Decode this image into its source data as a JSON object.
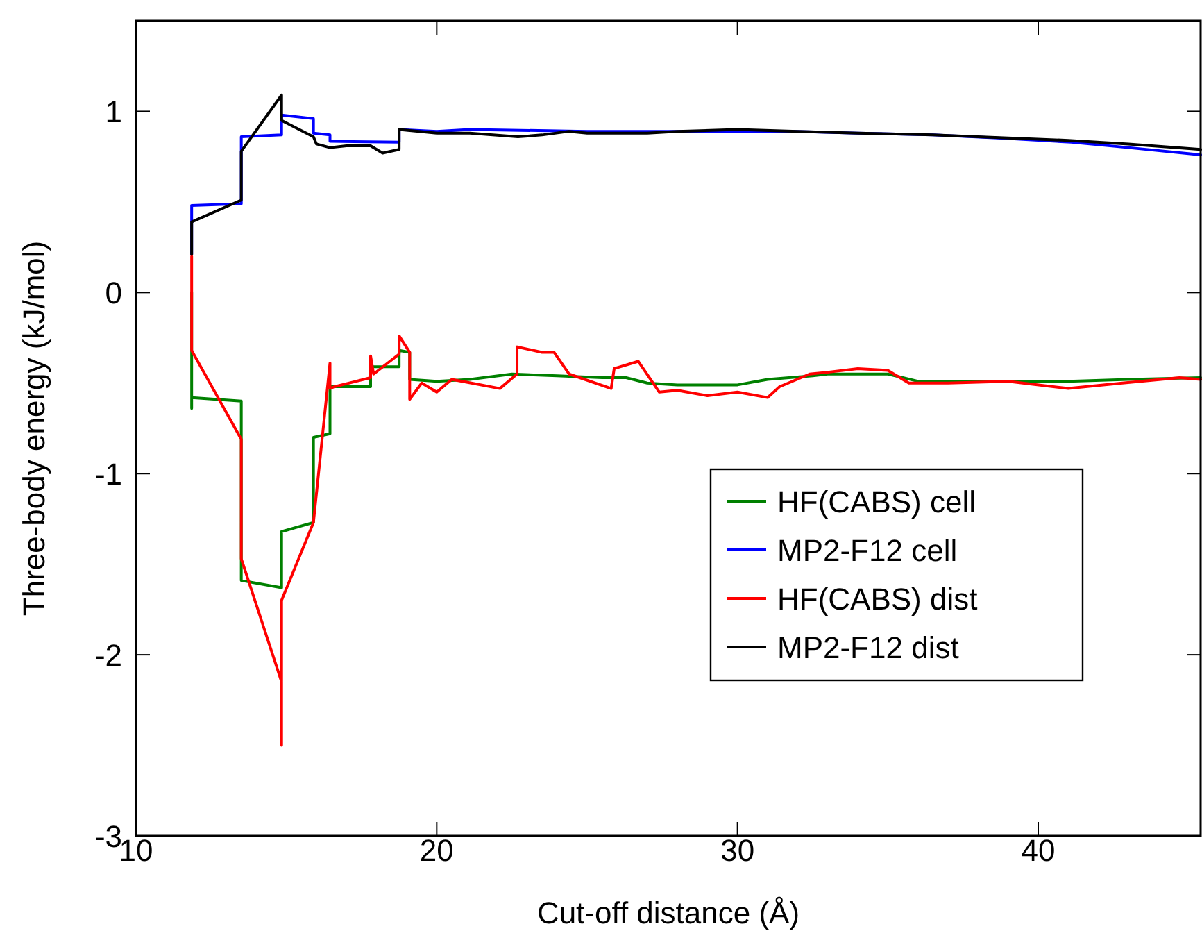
{
  "chart_data": {
    "type": "line",
    "xlabel": "Cut-off distance (Å)",
    "ylabel": "Three-body energy (kJ/mol)",
    "xlim": [
      10,
      45.4
    ],
    "ylim": [
      -3,
      1.5
    ],
    "xticks": [
      10,
      20,
      30,
      40
    ],
    "yticks": [
      -3,
      -2,
      -1,
      0,
      1
    ],
    "grid": false,
    "legend": "right",
    "line_style": "solid",
    "series": [
      {
        "name": "HF(CABS) cell",
        "color": "#008000",
        "x": [
          11.85,
          11.85,
          11.85,
          13.5,
          13.5,
          14.84,
          14.84,
          15.9,
          15.9,
          16.45,
          16.45,
          17.8,
          17.8,
          18.75,
          18.75,
          19.1,
          19.1,
          20,
          21.1,
          22.5,
          24,
          25.5,
          26.3,
          27,
          28,
          30,
          31,
          32.5,
          33,
          35,
          36,
          38,
          41,
          43,
          45.4
        ],
        "values": [
          0,
          -0.64,
          -0.58,
          -0.6,
          -1.59,
          -1.63,
          -1.32,
          -1.27,
          -0.8,
          -0.78,
          -0.52,
          -0.52,
          -0.41,
          -0.41,
          -0.32,
          -0.33,
          -0.48,
          -0.49,
          -0.48,
          -0.45,
          -0.46,
          -0.47,
          -0.47,
          -0.5,
          -0.51,
          -0.51,
          -0.48,
          -0.46,
          -0.45,
          -0.45,
          -0.49,
          -0.49,
          -0.49,
          -0.48,
          -0.47
        ]
      },
      {
        "name": "MP2-F12 cell",
        "color": "#0000ff",
        "x": [
          11.85,
          11.85,
          13.5,
          13.5,
          14.84,
          14.84,
          15.9,
          15.9,
          16.45,
          16.45,
          18.75,
          18.75,
          20,
          21.1,
          25,
          28,
          31.9,
          34,
          36.5,
          39,
          41.1,
          43,
          45.4
        ],
        "values": [
          0.21,
          0.48,
          0.49,
          0.86,
          0.87,
          0.98,
          0.96,
          0.88,
          0.87,
          0.835,
          0.83,
          0.9,
          0.89,
          0.9,
          0.89,
          0.89,
          0.89,
          0.88,
          0.87,
          0.85,
          0.83,
          0.8,
          0.76
        ]
      },
      {
        "name": "HF(CABS) dist",
        "color": "#ff0000",
        "x": [
          11.85,
          11.85,
          13.5,
          13.5,
          14.84,
          14.84,
          14.84,
          15.9,
          16.45,
          16.45,
          16.6,
          17.8,
          17.8,
          17.9,
          18.75,
          18.75,
          19.1,
          19.1,
          19.5,
          20,
          20.5,
          21.15,
          22.1,
          22.67,
          22.67,
          23.5,
          23.9,
          24.4,
          25.8,
          25.9,
          26.7,
          27.4,
          28,
          29,
          30,
          31,
          31.4,
          32.4,
          33,
          34,
          35,
          35.7,
          37,
          39,
          41,
          42.8,
          44.7,
          45.4
        ],
        "values": [
          0.2,
          -0.32,
          -0.81,
          -1.47,
          -2.15,
          -2.5,
          -1.7,
          -1.27,
          -0.39,
          -0.53,
          -0.52,
          -0.47,
          -0.35,
          -0.45,
          -0.34,
          -0.24,
          -0.33,
          -0.59,
          -0.5,
          -0.55,
          -0.48,
          -0.5,
          -0.53,
          -0.45,
          -0.3,
          -0.33,
          -0.33,
          -0.45,
          -0.53,
          -0.42,
          -0.38,
          -0.55,
          -0.54,
          -0.57,
          -0.55,
          -0.58,
          -0.52,
          -0.45,
          -0.44,
          -0.42,
          -0.43,
          -0.5,
          -0.5,
          -0.49,
          -0.53,
          -0.5,
          -0.47,
          -0.48
        ]
      },
      {
        "name": "MP2-F12 dist",
        "color": "#000000",
        "x": [
          11.85,
          11.85,
          13.5,
          13.5,
          14.84,
          14.84,
          15.9,
          16,
          16.45,
          17,
          17.8,
          18.2,
          18.75,
          18.75,
          20,
          21.1,
          22.7,
          23.5,
          24.4,
          25,
          26,
          27,
          28,
          30,
          32,
          34,
          36.5,
          38,
          41,
          43,
          45.4
        ],
        "values": [
          0.21,
          0.39,
          0.51,
          0.78,
          1.09,
          0.95,
          0.86,
          0.82,
          0.8,
          0.81,
          0.81,
          0.77,
          0.79,
          0.9,
          0.88,
          0.88,
          0.86,
          0.87,
          0.89,
          0.88,
          0.88,
          0.88,
          0.89,
          0.9,
          0.89,
          0.88,
          0.87,
          0.86,
          0.84,
          0.82,
          0.79
        ]
      }
    ]
  }
}
